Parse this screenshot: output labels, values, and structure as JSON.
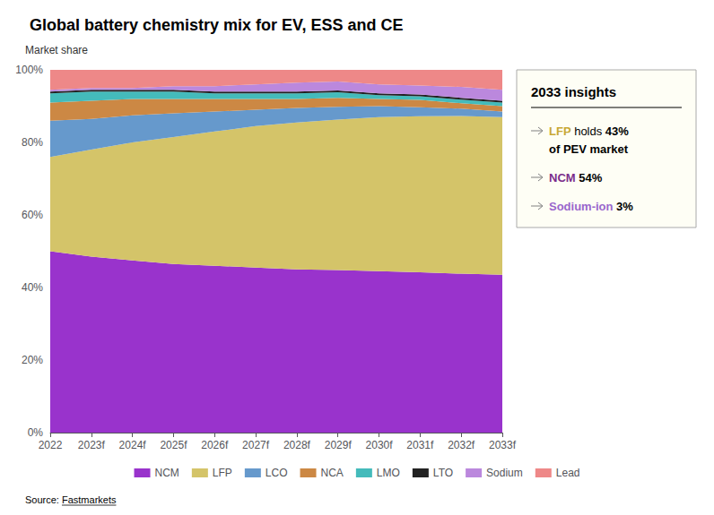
{
  "chart_data": {
    "type": "area",
    "title": "Global battery chemistry mix for EV, ESS and CE",
    "ylabel": "Market share",
    "categories": [
      "2022",
      "2023f",
      "2024f",
      "2025f",
      "2026f",
      "2027f",
      "2028f",
      "2029f",
      "2030f",
      "2031f",
      "2032f",
      "2033f"
    ],
    "series": [
      {
        "name": "NCM",
        "color": "#9933CC",
        "values": [
          50.0,
          48.5,
          47.5,
          46.5,
          46.0,
          45.5,
          45.0,
          44.8,
          44.5,
          44.2,
          43.8,
          43.5
        ]
      },
      {
        "name": "LFP",
        "color": "#D4C469",
        "values": [
          26.0,
          29.5,
          32.5,
          35.0,
          37.0,
          39.0,
          40.5,
          41.5,
          42.5,
          43.0,
          43.5,
          43.5
        ]
      },
      {
        "name": "LCO",
        "color": "#6699CC",
        "values": [
          10.0,
          8.5,
          7.5,
          6.5,
          5.5,
          4.5,
          4.0,
          3.5,
          3.0,
          2.5,
          2.0,
          1.5
        ]
      },
      {
        "name": "NCA",
        "color": "#CC8844",
        "values": [
          5.0,
          5.0,
          4.5,
          4.0,
          3.5,
          3.0,
          2.5,
          2.5,
          2.0,
          2.0,
          1.5,
          1.5
        ]
      },
      {
        "name": "LMO",
        "color": "#44BBBB",
        "values": [
          2.5,
          2.5,
          2.0,
          2.0,
          1.5,
          1.5,
          1.5,
          1.5,
          1.0,
          1.0,
          1.0,
          1.0
        ]
      },
      {
        "name": "LTO",
        "color": "#222222",
        "values": [
          0.5,
          0.5,
          0.5,
          0.5,
          0.5,
          0.5,
          0.5,
          0.5,
          0.5,
          0.5,
          0.5,
          0.5
        ]
      },
      {
        "name": "Sodium",
        "color": "#BB88DD",
        "values": [
          0.5,
          0.5,
          0.5,
          1.0,
          1.5,
          2.0,
          2.5,
          2.5,
          2.5,
          2.5,
          3.0,
          3.0
        ]
      },
      {
        "name": "Lead",
        "color": "#EE8888",
        "values": [
          5.5,
          5.0,
          5.0,
          4.5,
          4.5,
          4.0,
          3.5,
          3.2,
          4.0,
          4.3,
          4.7,
          5.5
        ]
      }
    ],
    "stacked": true,
    "ylim": [
      0,
      100
    ],
    "yticks": [
      {
        "value": 0,
        "label": "0%"
      },
      {
        "value": 20,
        "label": "20%"
      },
      {
        "value": 40,
        "label": "40%"
      },
      {
        "value": 60,
        "label": "60%"
      },
      {
        "value": 80,
        "label": "80%"
      },
      {
        "value": 100,
        "label": "100%"
      }
    ],
    "grid": true,
    "legend": "bottom",
    "annotations": {
      "title": "2033 insights",
      "items": [
        {
          "label": "LFP",
          "color": "#C8A832",
          "text": "holds",
          "pct": "43%",
          "line2": "of PEV market"
        },
        {
          "label": "NCM",
          "color": "#7B2D8B",
          "pct": "54%"
        },
        {
          "label": "Sodium-ion",
          "color": "#9966CC",
          "pct": "3%"
        }
      ]
    },
    "source": {
      "label": "Source:",
      "text": "Fastmarkets"
    }
  }
}
